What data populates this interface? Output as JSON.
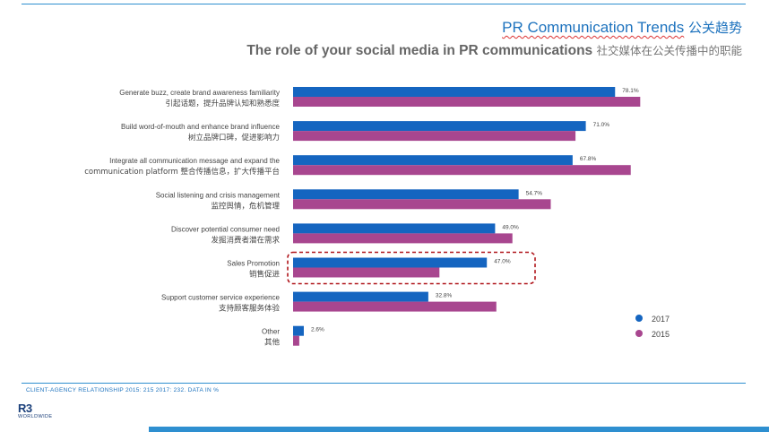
{
  "header": {
    "title_en": "PR Communication Trends",
    "title_cn": "公关趋势",
    "subtitle_en": "The role of your social media in PR communications",
    "subtitle_cn": "社交媒体在公关传播中的职能"
  },
  "footnote": "CLIENT-AGENCY  RELATIONSHIP  2015: 215 2017: 232. DATA IN %",
  "logo": {
    "mark": "R3",
    "sub": "WORLDWIDE"
  },
  "colors": {
    "s2017": "#1565c0",
    "s2015": "#a8468f",
    "highlight": "#b0161c",
    "title": "#1e73be"
  },
  "chart_data": {
    "type": "bar",
    "orientation": "horizontal",
    "categories": [
      [
        "Generate buzz, create brand awareness  familiarity",
        "引起话题，提升品牌认知和熟悉度"
      ],
      [
        "Build word-of-mouth and enhance brand influence",
        "树立品牌口碑，促进影响力"
      ],
      [
        "Integrate all communication message and expand the",
        "communication platform  整合传播信息，扩大传播平台"
      ],
      [
        "Social listening and crisis management",
        "监控舆情，危机管理"
      ],
      [
        "Discover potential consumer need",
        "发掘消费者潜在需求"
      ],
      [
        "Sales Promotion",
        "销售促进"
      ],
      [
        "Support customer service experience",
        "支持顾客服务体验"
      ],
      [
        "Other",
        "其他"
      ]
    ],
    "series": [
      {
        "name": "2017",
        "values": [
          78.1,
          71.0,
          67.8,
          54.7,
          49.0,
          47.0,
          32.8,
          2.6
        ],
        "labels": [
          "78.1%",
          "71.0%",
          "67.8%",
          "54.7%",
          "49.0%",
          "47.0%",
          "32.8%",
          "2.6%"
        ]
      },
      {
        "name": "2015",
        "values": [
          84.2,
          68.5,
          81.9,
          62.5,
          53.2,
          35.5,
          49.3,
          1.5
        ]
      }
    ],
    "xlim": [
      0,
      100
    ],
    "highlight_category": "Sales Promotion",
    "legend": "bottom-right"
  }
}
